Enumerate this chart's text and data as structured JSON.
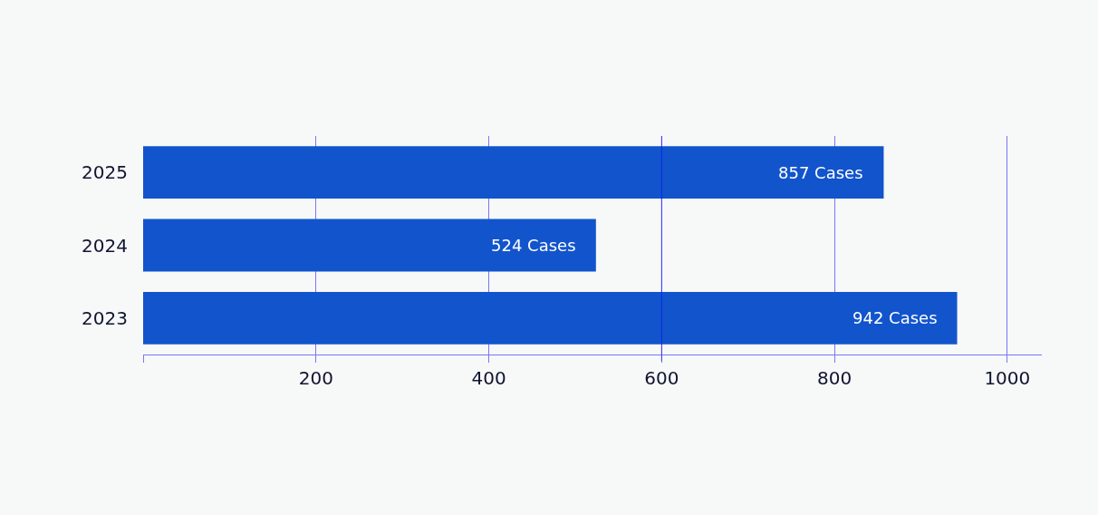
{
  "chart_data": {
    "type": "bar",
    "orientation": "horizontal",
    "categories": [
      "2025",
      "2024",
      "2023"
    ],
    "values": [
      857,
      524,
      942
    ],
    "color": "#1254cc",
    "value_labels": [
      "857 Cases",
      "524 Cases",
      "942 Cases"
    ],
    "xlim": [
      0,
      1040
    ],
    "xticks": [
      {
        "value": 0,
        "label": null
      },
      200,
      400,
      600,
      800,
      1000
    ],
    "grid": "x",
    "ref_lines": [
      {
        "axis": "x",
        "value": 600,
        "color": "#0000ff"
      }
    ]
  }
}
